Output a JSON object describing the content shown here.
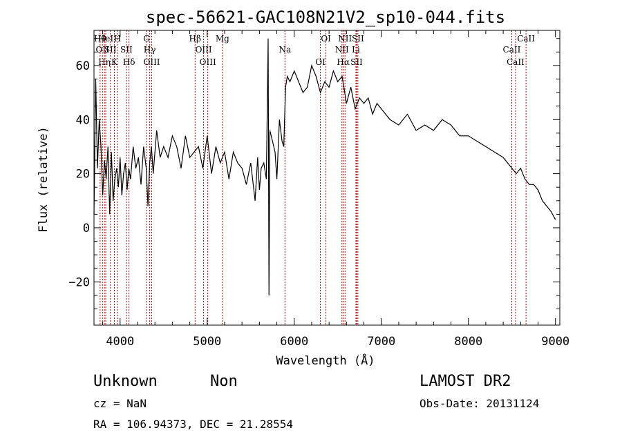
{
  "chart_data": {
    "type": "line",
    "title": "spec-56621-GAC108N21V2_sp10-044.fits",
    "xlabel": "Wavelength (Å)",
    "ylabel": "Flux (relative)",
    "xlim": [
      3700,
      9050
    ],
    "ylim": [
      -36,
      73
    ],
    "xticks": [
      "4000",
      "5000",
      "6000",
      "7000",
      "8000",
      "9000"
    ],
    "yticks": [
      "−20",
      "0",
      "20",
      "40",
      "60"
    ],
    "series": [
      {
        "x": [
          3700,
          3720,
          3740,
          3760,
          3780,
          3800,
          3820,
          3840,
          3860,
          3880,
          3900,
          3920,
          3940,
          3960,
          3980,
          4000,
          4020,
          4040,
          4060,
          4080,
          4100,
          4120,
          4150,
          4180,
          4210,
          4240,
          4270,
          4300,
          4320,
          4340,
          4360,
          4380,
          4420,
          4460,
          4500,
          4550,
          4600,
          4650,
          4700,
          4750,
          4800,
          4850,
          4900,
          4950,
          5000,
          5050,
          5100,
          5150,
          5200,
          5250,
          5300,
          5350,
          5400,
          5450,
          5500,
          5550,
          5580,
          5600,
          5620,
          5650,
          5680,
          5700,
          5710,
          5720,
          5750,
          5780,
          5800,
          5830,
          5860,
          5880,
          5900,
          5920,
          5950,
          6000,
          6050,
          6100,
          6150,
          6200,
          6250,
          6300,
          6350,
          6400,
          6450,
          6500,
          6550,
          6600,
          6650,
          6700,
          6750,
          6800,
          6850,
          6900,
          6950,
          7000,
          7100,
          7200,
          7300,
          7400,
          7500,
          7600,
          7700,
          7800,
          7900,
          8000,
          8100,
          8200,
          8300,
          8400,
          8500,
          8550,
          8600,
          8650,
          8700,
          8750,
          8800,
          8850,
          8900,
          8950,
          9000
        ],
        "y": [
          5,
          55,
          22,
          40,
          30,
          12,
          25,
          18,
          30,
          5,
          28,
          10,
          18,
          22,
          15,
          26,
          12,
          20,
          24,
          14,
          22,
          18,
          30,
          22,
          26,
          16,
          30,
          22,
          8,
          24,
          30,
          20,
          36,
          26,
          30,
          26,
          34,
          30,
          22,
          34,
          26,
          28,
          30,
          22,
          34,
          20,
          30,
          24,
          28,
          18,
          28,
          24,
          22,
          16,
          24,
          10,
          26,
          14,
          22,
          24,
          18,
          70,
          -25,
          36,
          32,
          28,
          18,
          40,
          32,
          30,
          52,
          56,
          54,
          58,
          54,
          50,
          52,
          60,
          56,
          50,
          54,
          52,
          58,
          54,
          56,
          46,
          52,
          44,
          48,
          46,
          48,
          42,
          46,
          44,
          40,
          38,
          42,
          36,
          38,
          36,
          40,
          38,
          34,
          34,
          32,
          30,
          28,
          26,
          22,
          20,
          22,
          18,
          16,
          16,
          14,
          10,
          8,
          6,
          3
        ]
      }
    ],
    "lines": [
      {
        "x": 3770,
        "label": "Hθ"
      },
      {
        "x": 3797,
        "label": "OII"
      },
      {
        "x": 3820,
        "label": "Hη"
      },
      {
        "x": 3835,
        "label": "HeI"
      },
      {
        "x": 3889,
        "label": "SII"
      },
      {
        "x": 3934,
        "label": "K"
      },
      {
        "x": 3969,
        "label": "H"
      },
      {
        "x": 4072,
        "label": "SII"
      },
      {
        "x": 4102,
        "label": "Hδ"
      },
      {
        "x": 4304,
        "label": "G"
      },
      {
        "x": 4340,
        "label": "Hγ"
      },
      {
        "x": 4363,
        "label": "OIII"
      },
      {
        "x": 4861,
        "label": "Hβ"
      },
      {
        "x": 4959,
        "label": "OIII"
      },
      {
        "x": 5007,
        "label": "OIII"
      },
      {
        "x": 5175,
        "label": "Mg"
      },
      {
        "x": 5893,
        "label": "Na"
      },
      {
        "x": 6300,
        "label": "OI"
      },
      {
        "x": 6364,
        "label": "OI"
      },
      {
        "x": 6548,
        "label": "NII"
      },
      {
        "x": 6563,
        "label": "Hα"
      },
      {
        "x": 6583,
        "label": "NII"
      },
      {
        "x": 6708,
        "label": "Li"
      },
      {
        "x": 6716,
        "label": "SII"
      },
      {
        "x": 6731,
        "label": "SII"
      },
      {
        "x": 8498,
        "label": "CaII"
      },
      {
        "x": 8542,
        "label": "CaII"
      },
      {
        "x": 8662,
        "label": "CaII"
      }
    ],
    "colors": {
      "spectrum": "#000000",
      "lines": "#c00000"
    }
  },
  "info": {
    "object_class": "Unknown",
    "subclass": "Non",
    "cz": "cz = NaN",
    "coords": "RA = 106.94373, DEC =  21.28554",
    "survey": "LAMOST DR2",
    "obs_date": "Obs-Date: 20131124"
  }
}
